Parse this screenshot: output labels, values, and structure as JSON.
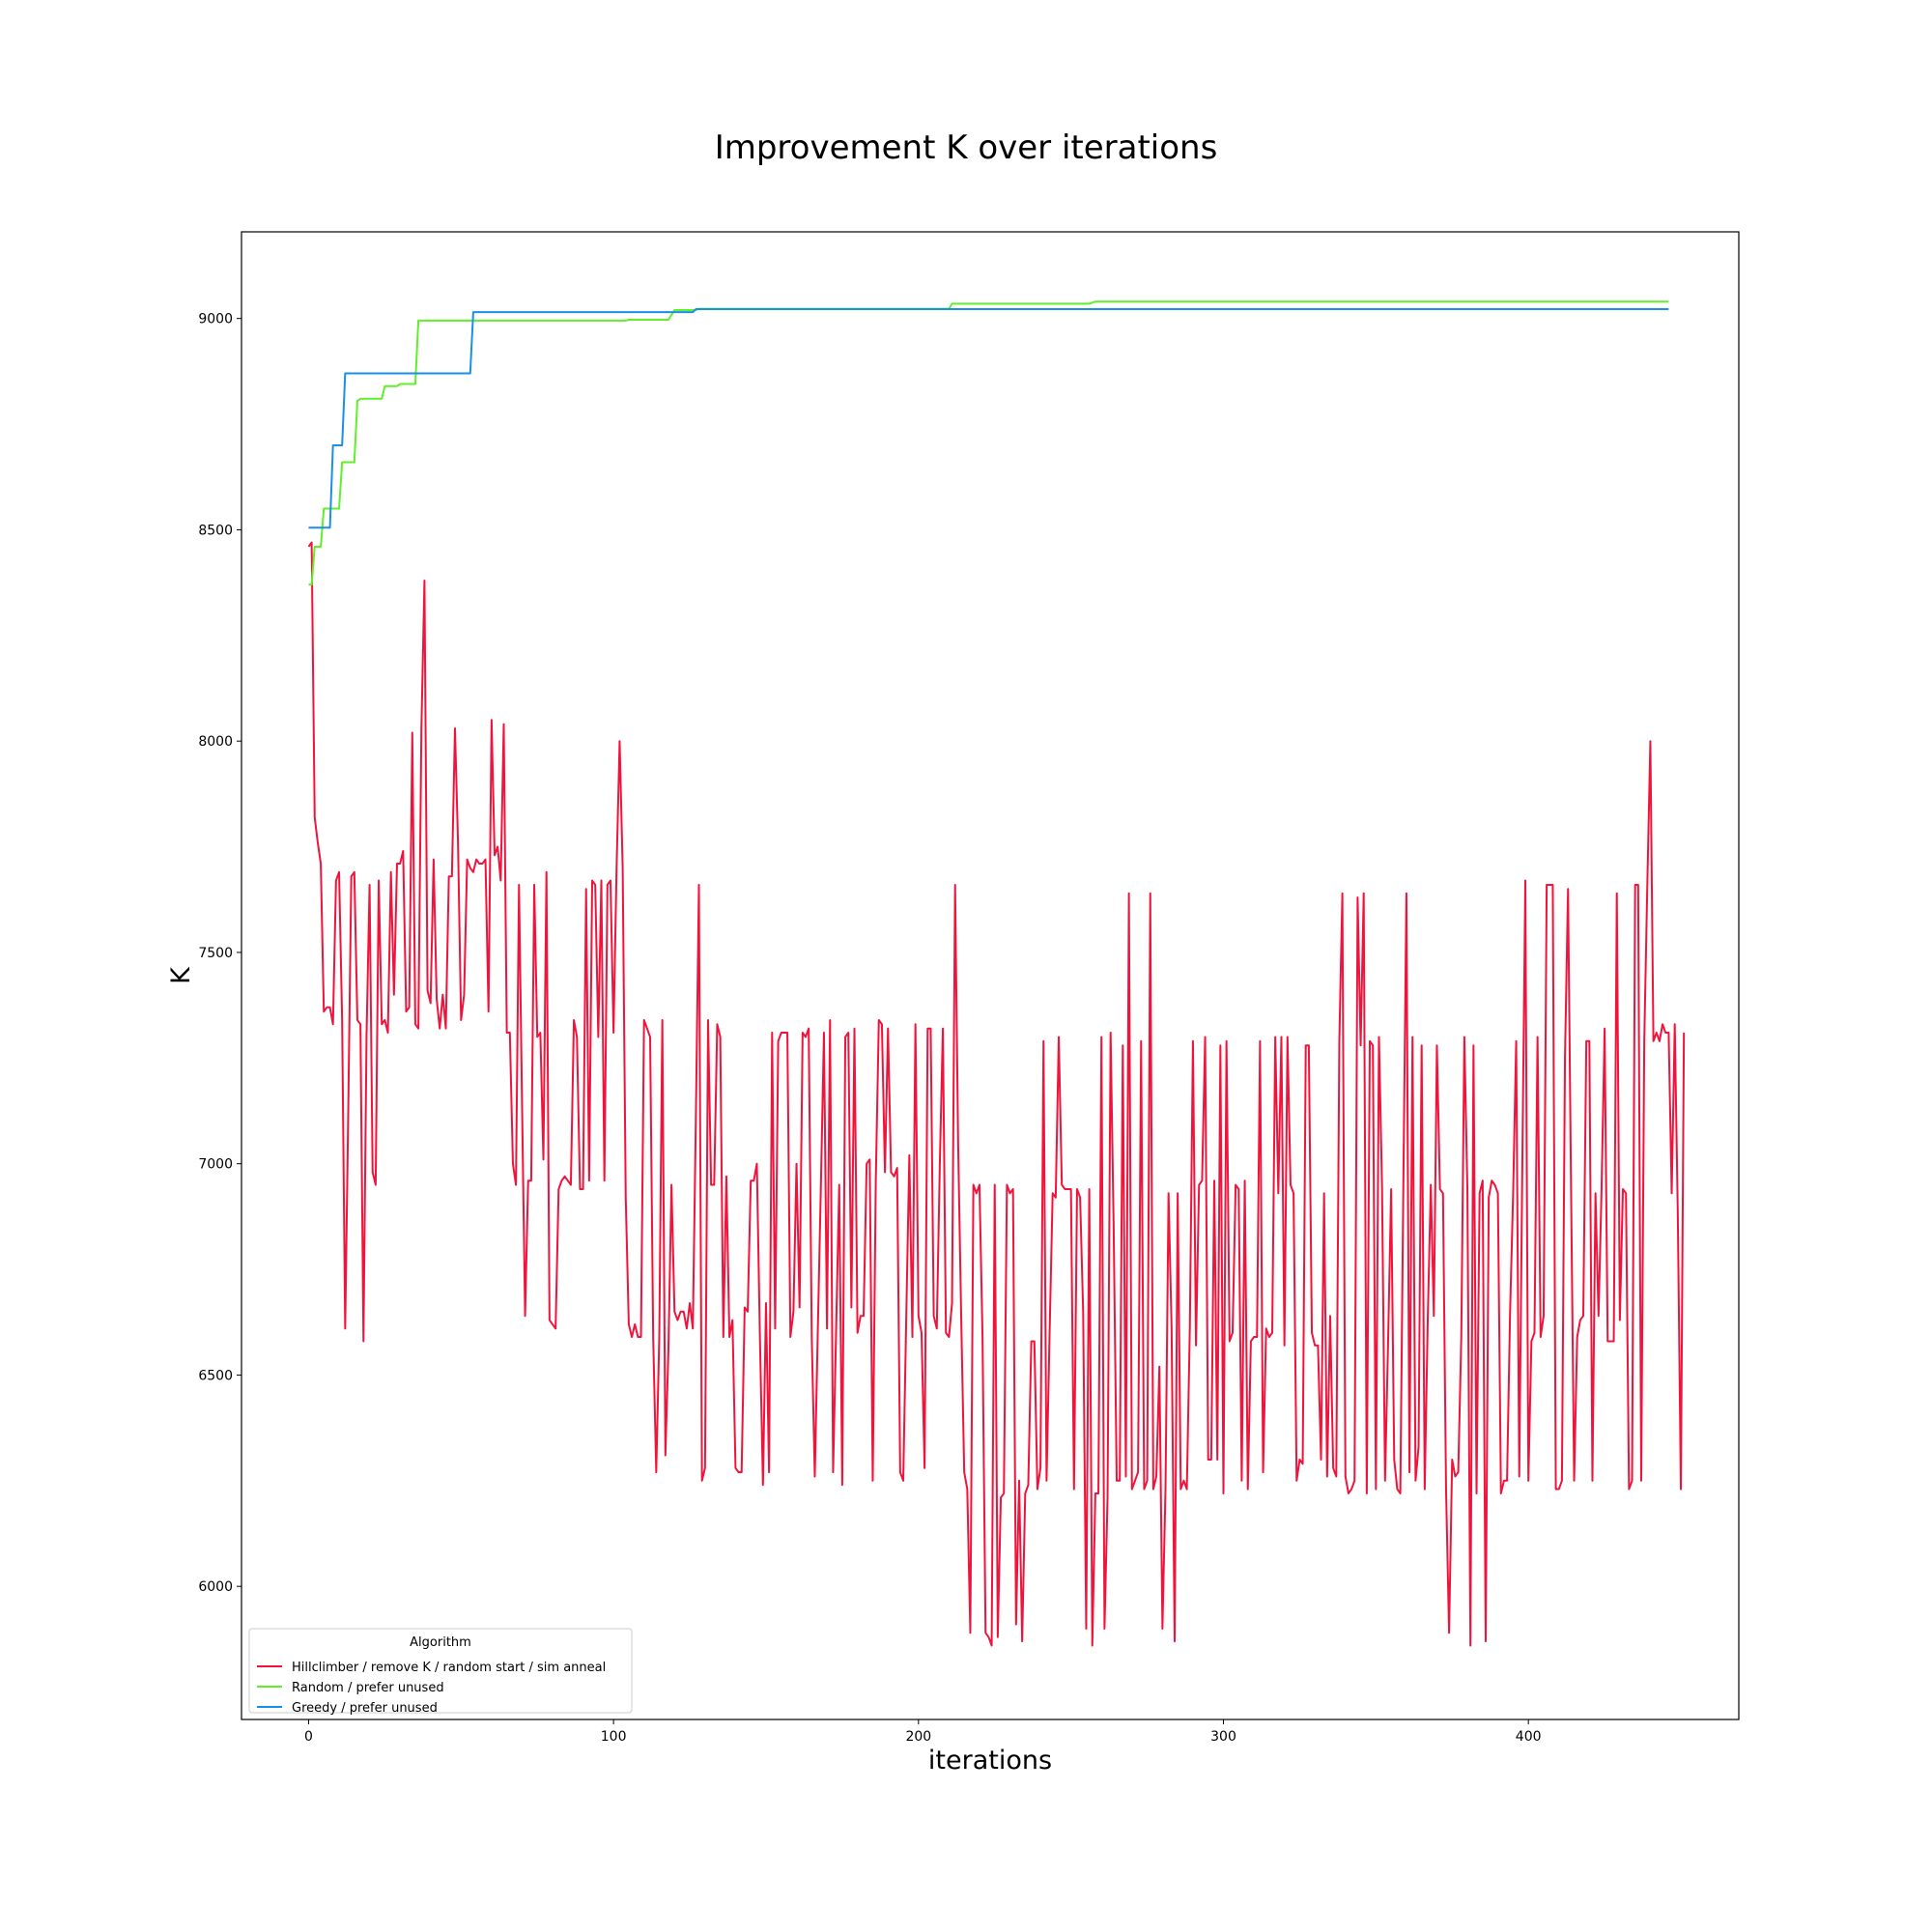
{
  "chart_data": {
    "type": "line",
    "title": "Improvement K over iterations",
    "xlabel": "iterations",
    "ylabel": "K",
    "xlim": [
      -22,
      469
    ],
    "ylim": [
      5685,
      9205
    ],
    "xticks": [
      0,
      100,
      200,
      300,
      400
    ],
    "yticks": [
      6000,
      6500,
      7000,
      7500,
      8000,
      8500,
      9000
    ],
    "grid": false,
    "legend": {
      "title": "Algorithm",
      "placement": "lower-left"
    },
    "series": [
      {
        "name": "Hillclimber / remove K / random start / sim anneal",
        "color": "#f0143c",
        "kind": "sampled",
        "x_start": 0,
        "x_step": 1,
        "values": [
          8460,
          8470,
          7820,
          7760,
          7710,
          7360,
          7370,
          7370,
          7330,
          7670,
          7690,
          7340,
          6610,
          7120,
          7680,
          7690,
          7340,
          7330,
          6580,
          7300,
          7660,
          6980,
          6950,
          7670,
          7330,
          7340,
          7310,
          7690,
          7400,
          7710,
          7710,
          7740,
          7360,
          7370,
          8020,
          7330,
          7320,
          8030,
          8380,
          7410,
          7380,
          7720,
          7390,
          7320,
          7400,
          7320,
          7680,
          7680,
          8030,
          7760,
          7340,
          7400,
          7720,
          7700,
          7690,
          7720,
          7710,
          7710,
          7720,
          7360,
          8050,
          7730,
          7750,
          7670,
          8040,
          7310,
          7310,
          7000,
          6950,
          7660,
          7140,
          6640,
          6960,
          6960,
          7660,
          7300,
          7310,
          7010,
          7690,
          6630,
          6620,
          6610,
          6940,
          6960,
          6970,
          6960,
          6950,
          7340,
          7300,
          6940,
          6940,
          7650,
          6960,
          7670,
          7660,
          7300,
          7670,
          6960,
          7660,
          7670,
          7310,
          7700,
          8000,
          7700,
          6920,
          6620,
          6590,
          6620,
          6590,
          6590,
          7340,
          7320,
          7300,
          6590,
          6270,
          6590,
          7340,
          6310,
          6560,
          6950,
          6650,
          6630,
          6650,
          6650,
          6610,
          6670,
          6610,
          7110,
          7660,
          6250,
          6280,
          7340,
          6950,
          6950,
          7330,
          7300,
          6590,
          6970,
          6590,
          6630,
          6280,
          6270,
          6270,
          6660,
          6650,
          6960,
          6960,
          7000,
          6590,
          6240,
          6670,
          6270,
          7310,
          6610,
          7290,
          7310,
          7310,
          7310,
          6590,
          6650,
          7000,
          6660,
          7310,
          7300,
          7320,
          6590,
          6260,
          6610,
          6950,
          7310,
          6610,
          7340,
          6270,
          6610,
          6950,
          6240,
          7300,
          7310,
          6660,
          7320,
          6600,
          6640,
          6640,
          7000,
          7010,
          6250,
          6960,
          7340,
          7330,
          6980,
          7320,
          6980,
          6970,
          6990,
          6270,
          6250,
          6640,
          7020,
          6590,
          7330,
          6640,
          6600,
          6280,
          7320,
          7320,
          6640,
          6610,
          7000,
          7320,
          6600,
          6590,
          6670,
          7660,
          7050,
          6640,
          6270,
          6230,
          5890,
          6950,
          6930,
          6950,
          6590,
          5890,
          5880,
          5860,
          6950,
          5880,
          6210,
          6220,
          6950,
          6930,
          6940,
          5910,
          6250,
          5870,
          6220,
          6240,
          6580,
          6580,
          6230,
          6280,
          7290,
          6250,
          6600,
          6930,
          6920,
          7300,
          6950,
          6940,
          6940,
          6940,
          6230,
          6940,
          6920,
          6650,
          5900,
          6940,
          5860,
          6220,
          6220,
          7300,
          5900,
          6210,
          7310,
          6850,
          6250,
          6250,
          7280,
          6260,
          7640,
          6230,
          6250,
          6270,
          7290,
          6230,
          6250,
          7640,
          6230,
          6260,
          6520,
          5900,
          6230,
          6930,
          6610,
          5870,
          6930,
          6230,
          6250,
          6230,
          6620,
          7290,
          6570,
          6950,
          6960,
          7300,
          6300,
          6300,
          6960,
          6300,
          7280,
          6220,
          7290,
          6580,
          6600,
          6950,
          6940,
          6250,
          6960,
          6230,
          6580,
          6590,
          6590,
          7290,
          6270,
          6610,
          6590,
          6600,
          7300,
          6930,
          7300,
          6570,
          7300,
          6950,
          6930,
          6250,
          6300,
          6290,
          7280,
          7280,
          6600,
          6570,
          6570,
          6300,
          6930,
          6260,
          6640,
          6280,
          6260,
          7290,
          7640,
          6260,
          6220,
          6230,
          6250,
          7630,
          7280,
          7640,
          6220,
          7290,
          7280,
          6230,
          7300,
          6950,
          6250,
          6580,
          6940,
          6300,
          6230,
          6220,
          6950,
          7640,
          6270,
          7300,
          6250,
          6330,
          7280,
          6230,
          6630,
          6950,
          6640,
          7280,
          6940,
          6930,
          6230,
          5890,
          6300,
          6260,
          6270,
          6590,
          7300,
          6940,
          5860,
          7280,
          6220,
          6930,
          6960,
          5870,
          6920,
          6960,
          6950,
          6930,
          6220,
          6250,
          6250,
          6650,
          6930,
          7290,
          6260,
          6990,
          7670,
          6250,
          6580,
          6600,
          7300,
          6590,
          6640,
          7660,
          7660,
          7660,
          6230,
          6230,
          6250,
          7250,
          7650,
          6940,
          6250,
          6590,
          6630,
          6640,
          7290,
          7290,
          6250,
          6930,
          6640,
          6940,
          7320,
          6580,
          6580,
          6580,
          7640,
          6630,
          6940,
          6930,
          6230,
          6250,
          7660,
          7660,
          6250,
          7290,
          7660,
          8000,
          7290,
          7310,
          7290,
          7330,
          7310,
          7310,
          6930,
          7330,
          6880,
          6230,
          7310
        ]
      },
      {
        "name": "Random / prefer unused",
        "color": "#5ff02a",
        "kind": "steps",
        "points": [
          [
            0,
            8370
          ],
          [
            1,
            8370
          ],
          [
            2,
            8460
          ],
          [
            4,
            8460
          ],
          [
            5,
            8550
          ],
          [
            10,
            8550
          ],
          [
            11,
            8660
          ],
          [
            15,
            8660
          ],
          [
            16,
            8805
          ],
          [
            17,
            8810
          ],
          [
            24,
            8810
          ],
          [
            25,
            8840
          ],
          [
            29,
            8840
          ],
          [
            30,
            8845
          ],
          [
            35,
            8845
          ],
          [
            36,
            8995
          ],
          [
            104,
            8995
          ],
          [
            105,
            8997
          ],
          [
            118,
            8997
          ],
          [
            120,
            9020
          ],
          [
            127,
            9020
          ],
          [
            128,
            9023
          ],
          [
            210,
            9023
          ],
          [
            211,
            9035
          ],
          [
            256,
            9035
          ],
          [
            258,
            9040
          ],
          [
            446,
            9040
          ]
        ]
      },
      {
        "name": "Greedy / prefer unused",
        "color": "#1a8fe8",
        "kind": "steps",
        "points": [
          [
            0,
            8505
          ],
          [
            7,
            8505
          ],
          [
            8,
            8700
          ],
          [
            11,
            8700
          ],
          [
            12,
            8870
          ],
          [
            53,
            8870
          ],
          [
            54,
            9015
          ],
          [
            126,
            9015
          ],
          [
            127,
            9022
          ],
          [
            446,
            9022
          ]
        ]
      }
    ]
  }
}
